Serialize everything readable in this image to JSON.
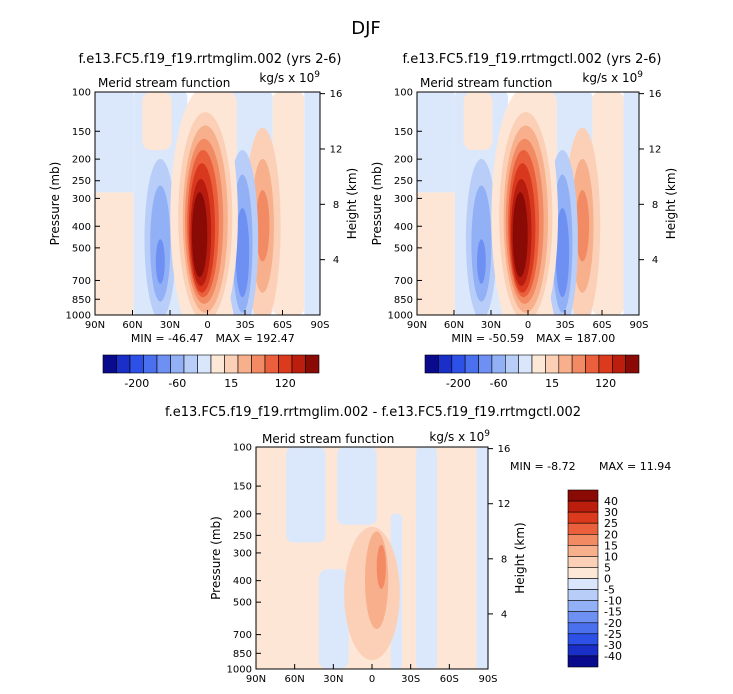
{
  "figure": {
    "title": "DJF"
  },
  "units_label": "kg/s x 10",
  "units_exponent": "9",
  "chart_data": [
    {
      "type": "contour",
      "title": "f.e13.FC5.f19_f19.rrtmglim.002 (yrs 2-6)",
      "subtitle": "Merid stream function",
      "units": "kg/s x 10^9",
      "xlabel": "",
      "ylabel": "Pressure (mb)",
      "ylabel_right": "Height (km)",
      "x_ticks": [
        "90N",
        "60N",
        "30N",
        "0",
        "30S",
        "60S",
        "90S"
      ],
      "y_ticks": [
        100,
        150,
        200,
        250,
        300,
        400,
        500,
        700,
        850,
        1000
      ],
      "y_scale": "log",
      "ylim": [
        1000,
        100
      ],
      "height_ticks": [
        4,
        8,
        12,
        16
      ],
      "min": -46.47,
      "max": 192.47,
      "min_label": "MIN = -46.47",
      "max_label": "MAX = 192.47",
      "colorbar_ticks": [
        "-200",
        "-60",
        "15",
        "120"
      ],
      "colorbar_colors": [
        "#0a0a8c",
        "#1a2ec8",
        "#2d50e6",
        "#4a70ee",
        "#6d90f2",
        "#92b0f5",
        "#b8cdf8",
        "#d9e6fb",
        "#fde8d8",
        "#fbd0b6",
        "#f7af8c",
        "#f28a64",
        "#ea5f3c",
        "#dc3a1c",
        "#bb1e0c",
        "#8a0a06"
      ]
    },
    {
      "type": "contour",
      "title": "f.e13.FC5.f19_f19.rrtmgctl.002 (yrs 2-6)",
      "subtitle": "Merid stream function",
      "units": "kg/s x 10^9",
      "xlabel": "",
      "ylabel": "Pressure (mb)",
      "ylabel_right": "Height (km)",
      "x_ticks": [
        "90N",
        "60N",
        "30N",
        "0",
        "30S",
        "60S",
        "90S"
      ],
      "y_ticks": [
        100,
        150,
        200,
        250,
        300,
        400,
        500,
        700,
        850,
        1000
      ],
      "y_scale": "log",
      "ylim": [
        1000,
        100
      ],
      "height_ticks": [
        4,
        8,
        12,
        16
      ],
      "min": -50.59,
      "max": 187.0,
      "min_label": "MIN = -50.59",
      "max_label": "MAX = 187.00",
      "colorbar_ticks": [
        "-200",
        "-60",
        "15",
        "120"
      ],
      "colorbar_colors": [
        "#0a0a8c",
        "#1a2ec8",
        "#2d50e6",
        "#4a70ee",
        "#6d90f2",
        "#92b0f5",
        "#b8cdf8",
        "#d9e6fb",
        "#fde8d8",
        "#fbd0b6",
        "#f7af8c",
        "#f28a64",
        "#ea5f3c",
        "#dc3a1c",
        "#bb1e0c",
        "#8a0a06"
      ]
    },
    {
      "type": "contour",
      "title": "f.e13.FC5.f19_f19.rrtmglim.002 - f.e13.FC5.f19_f19.rrtmgctl.002",
      "subtitle": "Merid stream function",
      "units": "kg/s x 10^9",
      "xlabel": "",
      "ylabel": "Pressure (mb)",
      "ylabel_right": "Height (km)",
      "x_ticks": [
        "90N",
        "60N",
        "30N",
        "0",
        "30S",
        "60S",
        "90S"
      ],
      "y_ticks": [
        100,
        150,
        200,
        250,
        300,
        400,
        500,
        700,
        850,
        1000
      ],
      "y_scale": "log",
      "ylim": [
        1000,
        100
      ],
      "height_ticks": [
        4,
        8,
        12,
        16
      ],
      "min": -8.72,
      "max": 11.94,
      "min_label": "MIN =   -8.72",
      "max_label": "MAX =   11.94",
      "colorbar_ticks": [
        "40",
        "30",
        "25",
        "20",
        "15",
        "10",
        "5",
        "0",
        "-5",
        "-10",
        "-15",
        "-20",
        "-25",
        "-30",
        "-40"
      ],
      "colorbar_colors": [
        "#8a0a06",
        "#bb1e0c",
        "#dc3a1c",
        "#ea5f3c",
        "#f28a64",
        "#f7af8c",
        "#fbd0b6",
        "#fde8d8",
        "#d9e6fb",
        "#b8cdf8",
        "#92b0f5",
        "#6d90f2",
        "#4a70ee",
        "#2d50e6",
        "#1a2ec8",
        "#0a0a8c"
      ]
    }
  ]
}
